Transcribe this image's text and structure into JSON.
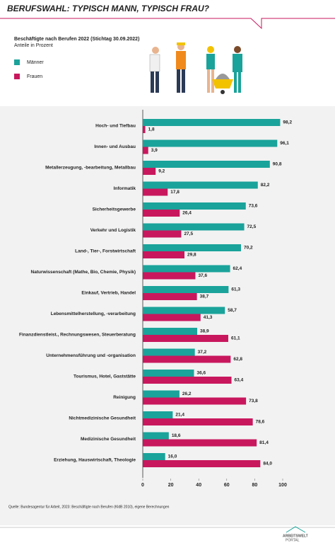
{
  "chart_data": {
    "type": "grouped-hbar",
    "title": "BERUFSWAHL: TYPISCH MANN, TYPISCH FRAU?",
    "subtitle": "Beschäftigte nach Berufen 2022 (Stichtag 30.09.2022)",
    "unit_note": "Anteile in Prozent",
    "categories": [
      "Hoch- und Tiefbau",
      "Innen- und Ausbau",
      "Metallerzeugung, -bearbeitung, Metallbau",
      "Informatik",
      "Sicherheitsgewerbe",
      "Verkehr und Logistik",
      "Land-, Tier-, Forstwirtschaft",
      "Naturwissenschaft (Mathe, Bio, Chemie, Physik)",
      "Einkauf, Vertrieb, Handel",
      "Lebensmittelherstellung, -verarbeitung",
      "Finanzdienstleist., Rechnungswesen, Steuerberatung",
      "Unternehmensführung und -organisation",
      "Tourismus, Hotel, Gaststätte",
      "Reinigung",
      "Nichtmedizinische Gesundheit",
      "Medizinische Gesundheit",
      "Erziehung, Hauswirtschaft, Theologie"
    ],
    "series": [
      {
        "name": "Männer",
        "color": "#1aa39a",
        "values": [
          98.2,
          96.1,
          90.8,
          82.2,
          73.6,
          72.5,
          70.2,
          62.4,
          61.3,
          58.7,
          38.9,
          37.2,
          36.6,
          26.2,
          21.4,
          18.6,
          16.0
        ],
        "value_labels": [
          "98,2",
          "96,1",
          "90,8",
          "82,2",
          "73,6",
          "72,5",
          "70,2",
          "62,4",
          "61,3",
          "58,7",
          "38,9",
          "37,2",
          "36,6",
          "26,2",
          "21,4",
          "18,6",
          "16,0"
        ]
      },
      {
        "name": "Frauen",
        "color": "#c8175d",
        "values": [
          1.8,
          3.9,
          9.2,
          17.8,
          26.4,
          27.5,
          29.8,
          37.6,
          38.7,
          41.3,
          61.1,
          62.8,
          63.4,
          73.8,
          78.6,
          81.4,
          84.0
        ],
        "value_labels": [
          "1,8",
          "3,9",
          "9,2",
          "17,8",
          "26,4",
          "27,5",
          "29,8",
          "37,6",
          "38,7",
          "41,3",
          "61,1",
          "62,8",
          "63,4",
          "73,8",
          "78,6",
          "81,4",
          "84,0"
        ]
      }
    ],
    "xlim": [
      0,
      100
    ],
    "xticks": [
      0,
      20,
      40,
      60,
      80,
      100
    ],
    "source": "Quelle: Bundesagentur für Arbeit, 2023: Beschäftigte nach Berufen (KldB 2010), eigene Berechnungen"
  },
  "logo": {
    "line1": "ARBEITSWELT",
    "line2": "PORTAL"
  }
}
